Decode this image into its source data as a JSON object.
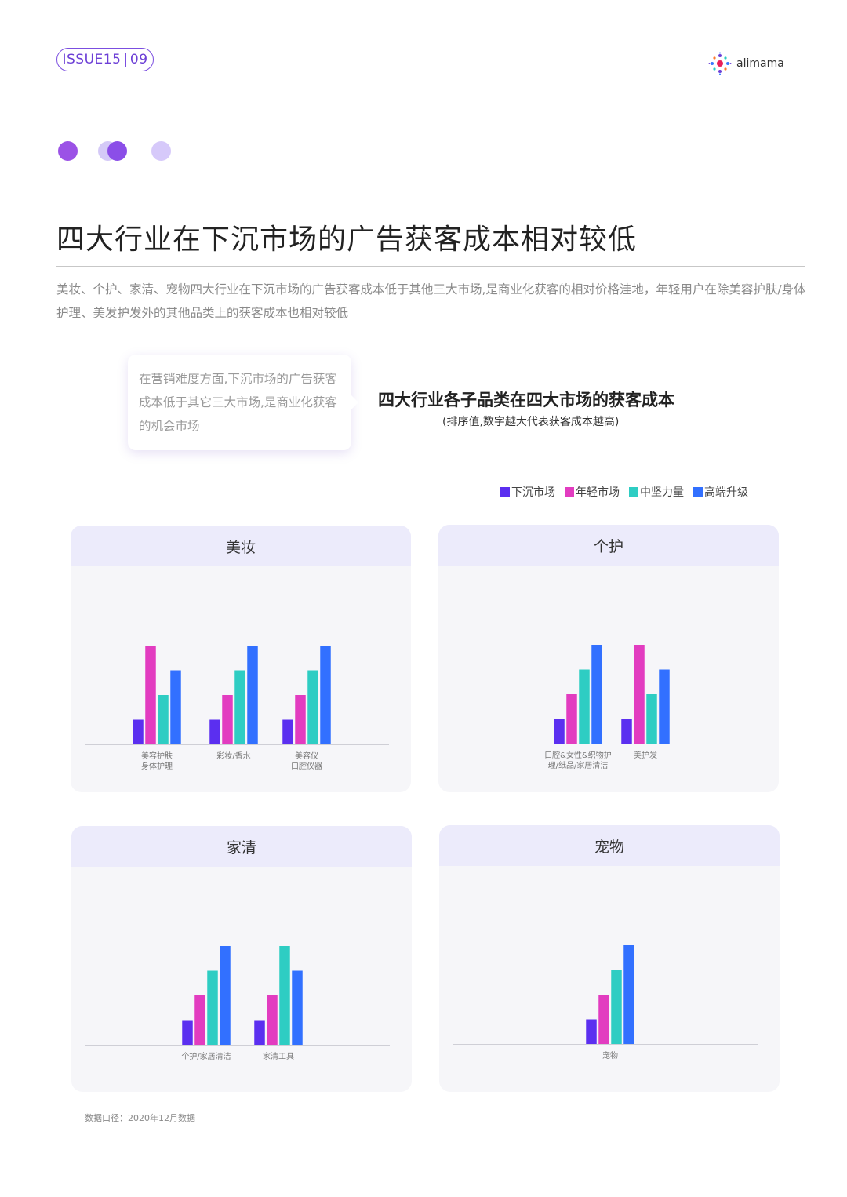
{
  "header": {
    "issue": "ISSUE15",
    "page": "09",
    "brand": "alimama"
  },
  "title": "四大行业在下沉市场的广告获客成本相对较低",
  "intro": "美妆、个护、家清、宠物四大行业在下沉市场的广告获客成本低于其他三大市场,是商业化获客的相对价格洼地，年轻用户在除美容护肤/身体护理、美发护发外的其他品类上的获客成本也相对较低",
  "bubble_text": "在营销难度方面,下沉市场的广告获客成本低于其它三大市场,是商业化获客的机会市场",
  "colors": {
    "accent": "#6c3fd6",
    "xiachen": "#5b2ff0",
    "nianqing": "#e23cc0",
    "zhongjian": "#2ecdc3",
    "gaoduan": "#3270ff"
  },
  "chart_data": {
    "type": "bar",
    "title": "四大行业各子品类在四大市场的获客成本",
    "subtitle": "(排序值,数字越大代表获客成本越高)",
    "legend": [
      "下沉市场",
      "年轻市场",
      "中坚力量",
      "高端升级"
    ],
    "legend_position": "top-right",
    "grid": false,
    "ylim": [
      0,
      4.2
    ],
    "panels": [
      {
        "name": "美妆",
        "categories": [
          [
            "美容护肤",
            "身体护理"
          ],
          [
            "彩妆/香水"
          ],
          [
            "美容仪",
            "口腔仪器"
          ]
        ],
        "series": [
          {
            "name": "下沉市场",
            "values": [
              1,
              1,
              1
            ]
          },
          {
            "name": "年轻市场",
            "values": [
              4,
              2,
              2
            ]
          },
          {
            "name": "中坚力量",
            "values": [
              2,
              3,
              3
            ]
          },
          {
            "name": "高端升级",
            "values": [
              3,
              4,
              4
            ]
          }
        ]
      },
      {
        "name": "个护",
        "categories": [
          [
            "口腔&女性&织物护",
            "理/纸品/家居清洁"
          ],
          [
            "美护发"
          ]
        ],
        "series": [
          {
            "name": "下沉市场",
            "values": [
              1,
              1
            ]
          },
          {
            "name": "年轻市场",
            "values": [
              2,
              4
            ]
          },
          {
            "name": "中坚力量",
            "values": [
              3,
              2
            ]
          },
          {
            "name": "高端升级",
            "values": [
              4,
              3
            ]
          }
        ]
      },
      {
        "name": "家清",
        "categories": [
          [
            "个护/家居清洁"
          ],
          [
            "家清工具"
          ]
        ],
        "series": [
          {
            "name": "下沉市场",
            "values": [
              1,
              1
            ]
          },
          {
            "name": "年轻市场",
            "values": [
              2,
              2
            ]
          },
          {
            "name": "中坚力量",
            "values": [
              3,
              4
            ]
          },
          {
            "name": "高端升级",
            "values": [
              4,
              3
            ]
          }
        ]
      },
      {
        "name": "宠物",
        "categories": [
          [
            "宠物"
          ]
        ],
        "series": [
          {
            "name": "下沉市场",
            "values": [
              1
            ]
          },
          {
            "name": "年轻市场",
            "values": [
              2
            ]
          },
          {
            "name": "中坚力量",
            "values": [
              3
            ]
          },
          {
            "name": "高端升级",
            "values": [
              4
            ]
          }
        ]
      }
    ]
  },
  "footnote": "数据口径：2020年12月数据"
}
